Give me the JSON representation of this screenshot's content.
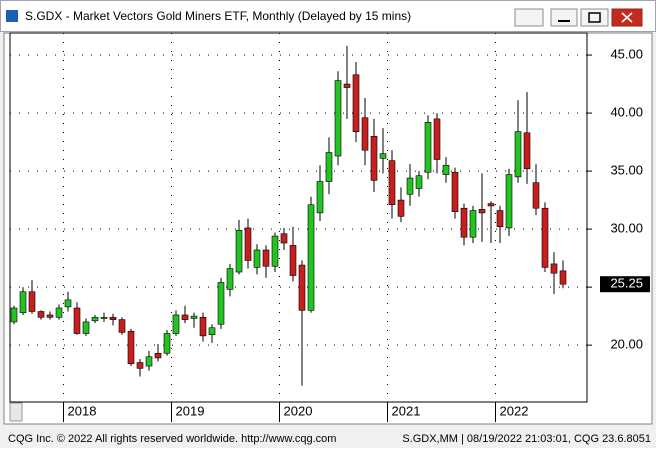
{
  "chart_data": {
    "type": "candlestick",
    "title": "S.GDX - Market Vectors Gold Miners ETF, Monthly (Delayed by 15 mins)",
    "categories": [
      null,
      null,
      null,
      null,
      null,
      null,
      "2018",
      null,
      null,
      null,
      null,
      null,
      null,
      null,
      null,
      null,
      null,
      null,
      "2019",
      null,
      null,
      null,
      null,
      null,
      null,
      null,
      null,
      null,
      null,
      null,
      "2020",
      null,
      null,
      null,
      null,
      null,
      null,
      null,
      null,
      null,
      null,
      null,
      "2021",
      null,
      null,
      null,
      null,
      null,
      null,
      null,
      null,
      null,
      null,
      null,
      "2022",
      null,
      null,
      null,
      null,
      null,
      null,
      null
    ],
    "open": [
      22.0,
      22.8,
      24.6,
      22.9,
      22.6,
      22.4,
      23.3,
      23.2,
      21.0,
      22.1,
      22.3,
      22.4,
      22.2,
      21.2,
      18.5,
      18.2,
      19.3,
      19.3,
      21.0,
      22.6,
      22.3,
      22.4,
      20.9,
      21.8,
      24.8,
      26.3,
      30.1,
      26.7,
      28.2,
      26.8,
      29.6,
      28.6,
      26.9,
      23.0,
      31.4,
      34.1,
      36.3,
      42.5,
      43.3,
      39.6,
      38.0,
      36.1,
      35.9,
      32.5,
      33.0,
      33.5,
      34.9,
      39.5,
      34.7,
      34.9,
      31.8,
      29.3,
      31.7,
      32.2,
      31.6,
      30.1,
      34.5,
      38.3,
      34.0,
      31.8,
      27.0,
      26.4
    ],
    "high": [
      23.4,
      25.0,
      25.6,
      23.0,
      22.9,
      23.5,
      24.6,
      23.7,
      22.3,
      22.6,
      22.8,
      22.7,
      22.4,
      21.4,
      18.8,
      19.5,
      20.1,
      21.3,
      23.0,
      23.4,
      22.8,
      22.8,
      21.8,
      25.8,
      27.0,
      30.8,
      30.9,
      28.7,
      28.6,
      29.7,
      30.1,
      30.2,
      27.3,
      32.8,
      35.5,
      37.9,
      43.6,
      45.8,
      44.4,
      41.3,
      39.5,
      38.7,
      36.8,
      33.6,
      35.6,
      35.0,
      39.8,
      40.0,
      36.2,
      35.3,
      32.2,
      32.0,
      34.8,
      32.4,
      32.0,
      35.2,
      41.1,
      41.8,
      35.6,
      32.3,
      28.0,
      27.3
    ],
    "low": [
      21.8,
      22.6,
      22.7,
      22.2,
      22.2,
      22.2,
      22.9,
      20.9,
      20.8,
      21.9,
      22.0,
      21.7,
      20.9,
      18.2,
      17.3,
      17.8,
      18.6,
      19.1,
      20.8,
      21.9,
      21.5,
      20.3,
      20.2,
      21.4,
      24.2,
      26.1,
      26.6,
      26.1,
      25.8,
      26.3,
      28.2,
      25.5,
      16.5,
      22.8,
      30.7,
      33.0,
      35.5,
      39.5,
      37.5,
      35.5,
      33.2,
      34.8,
      30.9,
      30.6,
      32.0,
      32.8,
      34.3,
      34.8,
      34.0,
      30.9,
      28.6,
      28.8,
      28.9,
      28.8,
      28.8,
      29.4,
      34.0,
      33.9,
      31.2,
      26.3,
      24.4,
      24.9
    ],
    "close": [
      23.2,
      24.6,
      22.9,
      22.4,
      22.4,
      23.2,
      23.9,
      21.0,
      22.0,
      22.4,
      22.4,
      22.2,
      21.1,
      18.4,
      18.0,
      19.0,
      18.9,
      21.0,
      22.6,
      22.2,
      22.5,
      20.8,
      21.5,
      25.4,
      26.6,
      29.9,
      27.3,
      28.2,
      26.8,
      29.4,
      28.8,
      26.0,
      23.0,
      32.1,
      34.1,
      36.6,
      42.8,
      42.2,
      38.4,
      36.8,
      34.2,
      36.5,
      32.1,
      31.1,
      34.4,
      34.6,
      39.2,
      36.0,
      35.5,
      31.5,
      29.3,
      31.6,
      31.4,
      32.0,
      30.2,
      34.7,
      38.4,
      35.2,
      31.8,
      26.7,
      26.2,
      25.25
    ],
    "up_color": "#22c322",
    "down_color": "#c81e1e",
    "ylim": [
      15.1,
      46.9
    ],
    "yticks": [
      {
        "value": 20,
        "label": "20.00"
      },
      {
        "value": 25,
        "label": "25.00"
      },
      {
        "value": 30,
        "label": "30.00"
      },
      {
        "value": 35,
        "label": "35.00"
      },
      {
        "value": 40,
        "label": "40.00"
      },
      {
        "value": 45,
        "label": "45.00"
      }
    ],
    "grid": true
  },
  "footer": {
    "left": "CQG Inc. © 2022 All rights reserved worldwide. http://www.cqg.com",
    "right": "S.GDX,MM | 08/19/2022 21:03:01, CQG 23.6.8051"
  }
}
